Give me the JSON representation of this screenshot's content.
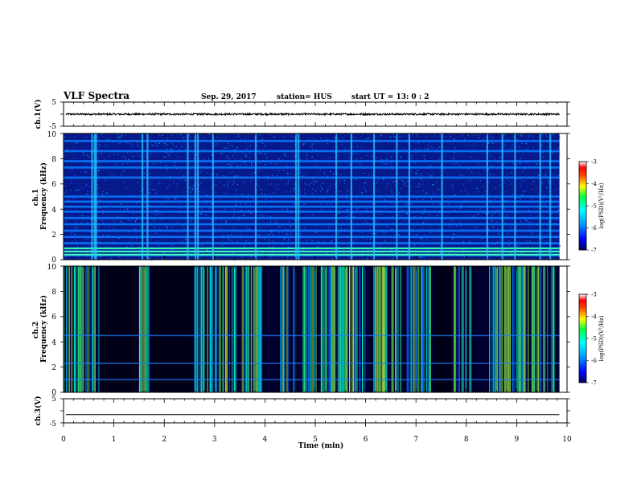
{
  "header": {
    "title": "VLF Spectra",
    "date": "Sep. 29, 2017",
    "station": "station= HUS",
    "start_ut": "start  UT  =   13: 0  : 2"
  },
  "chart_data": [
    {
      "type": "line",
      "panel": "ch1-waveform",
      "ylabel": "ch.1(V)",
      "ylim": [
        -5,
        5
      ],
      "yticks": [
        "5",
        "-5"
      ],
      "xlim": [
        0,
        10
      ],
      "signal": {
        "center": 0,
        "spread": 0.35,
        "end_min": 9.85
      }
    },
    {
      "type": "heatmap",
      "panel": "ch1-spectrogram",
      "ylabel": "ch.1\nFrequency (kHz)",
      "ylim": [
        0,
        10
      ],
      "yticks": [
        "0",
        "2",
        "4",
        "6",
        "8",
        "10"
      ],
      "xlim": [
        0,
        9.85
      ],
      "colorbar": {
        "label": "log(PSD)(V²/Hz)",
        "range": [
          -7,
          -3
        ],
        "ticks": [
          "-3",
          "-4",
          "-5",
          "-6",
          "-7"
        ]
      },
      "horizontal_bands_khz": [
        0.35,
        0.65,
        0.9,
        1.3,
        1.8,
        2.3,
        2.8,
        3.3,
        3.8,
        4.2,
        4.6,
        5.0,
        6.5,
        7.3,
        7.8,
        8.6,
        9.4
      ],
      "bright_bands_khz": [
        0.4,
        0.65,
        0.9
      ],
      "broadband_bursts_min": [
        0.55,
        0.6,
        0.63,
        1.55,
        1.65,
        2.45,
        2.6,
        2.65,
        2.95,
        3.8,
        4.6,
        4.65,
        5.4,
        5.7,
        6.15,
        6.6,
        6.85,
        7.5,
        8.4,
        8.7,
        8.95,
        9.45,
        9.65
      ],
      "background_level": "low"
    },
    {
      "type": "heatmap",
      "panel": "ch2-spectrogram",
      "ylabel": "ch.2\nFrequency (kHz)",
      "ylim": [
        0,
        10
      ],
      "yticks": [
        "0",
        "2",
        "4",
        "6",
        "8",
        "10"
      ],
      "xlim": [
        0,
        9.85
      ],
      "colorbar": {
        "label": "log(PSD)(V²/Hz)",
        "range": [
          -7,
          -3
        ],
        "ticks": [
          "-3",
          "-4",
          "-5",
          "-6",
          "-7"
        ]
      },
      "horizontal_bands_khz": [
        1.0,
        2.3,
        4.5
      ],
      "active_intervals_min": [
        [
          0.0,
          0.7
        ],
        [
          1.5,
          1.7
        ],
        [
          2.6,
          2.8
        ],
        [
          2.85,
          3.95
        ],
        [
          4.3,
          4.6
        ],
        [
          4.75,
          6.0
        ],
        [
          6.15,
          7.3
        ],
        [
          7.75,
          8.1
        ],
        [
          8.45,
          9.75
        ]
      ],
      "quiet_intervals_min": [
        [
          0.75,
          1.45
        ],
        [
          1.75,
          2.55
        ],
        [
          7.35,
          7.7
        ]
      ],
      "background_level": "very low"
    },
    {
      "type": "line",
      "panel": "ch3-waveform",
      "ylabel": "ch.3(V)",
      "ylim": [
        -5,
        5
      ],
      "yticks": [
        "5",
        "-5"
      ],
      "xlim": [
        0,
        10
      ],
      "signal": {
        "center": -1.6,
        "spread": 0,
        "end_min": 9.85
      }
    }
  ],
  "x_axis": {
    "label": "Time (min)",
    "ticks": [
      "0",
      "1",
      "2",
      "3",
      "4",
      "5",
      "6",
      "7",
      "8",
      "9",
      "10"
    ]
  }
}
